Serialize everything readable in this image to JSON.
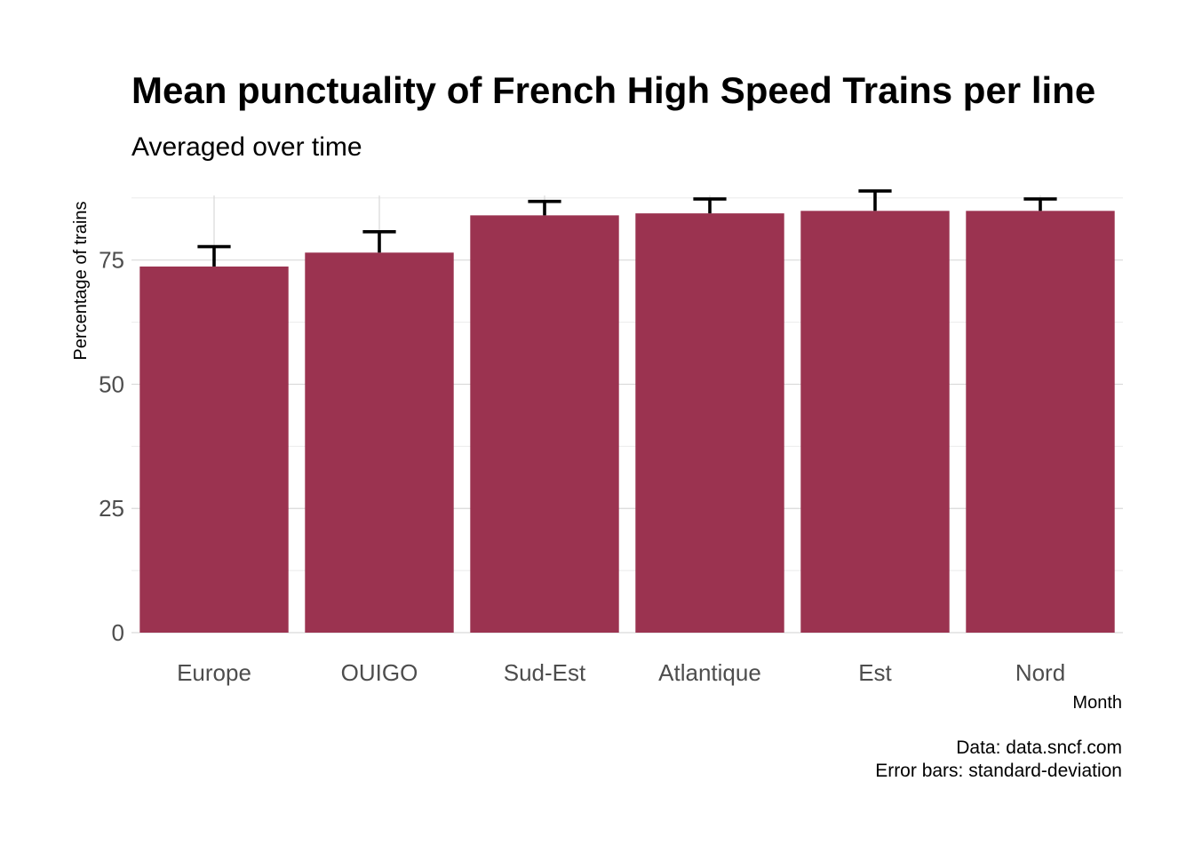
{
  "chart_data": {
    "type": "bar",
    "title": "Mean punctuality of French High Speed Trains per line",
    "subtitle": "Averaged over time",
    "xlabel": "Month",
    "ylabel": "Percentage of trains",
    "categories": [
      "Europe",
      "OUIGO",
      "Sud-Est",
      "Atlantique",
      "Est",
      "Nord"
    ],
    "values": [
      73.7,
      76.5,
      84.0,
      84.4,
      84.9,
      84.9
    ],
    "error_upper": [
      77.7,
      80.7,
      86.8,
      87.3,
      88.9,
      87.3
    ],
    "ylim": [
      0,
      88
    ],
    "yticks": [
      0,
      25,
      50,
      75
    ],
    "grid": true,
    "legend": "none",
    "bar_color": "#9b3350",
    "caption": [
      "Data: data.sncf.com",
      "Error bars: standard-deviation"
    ]
  }
}
